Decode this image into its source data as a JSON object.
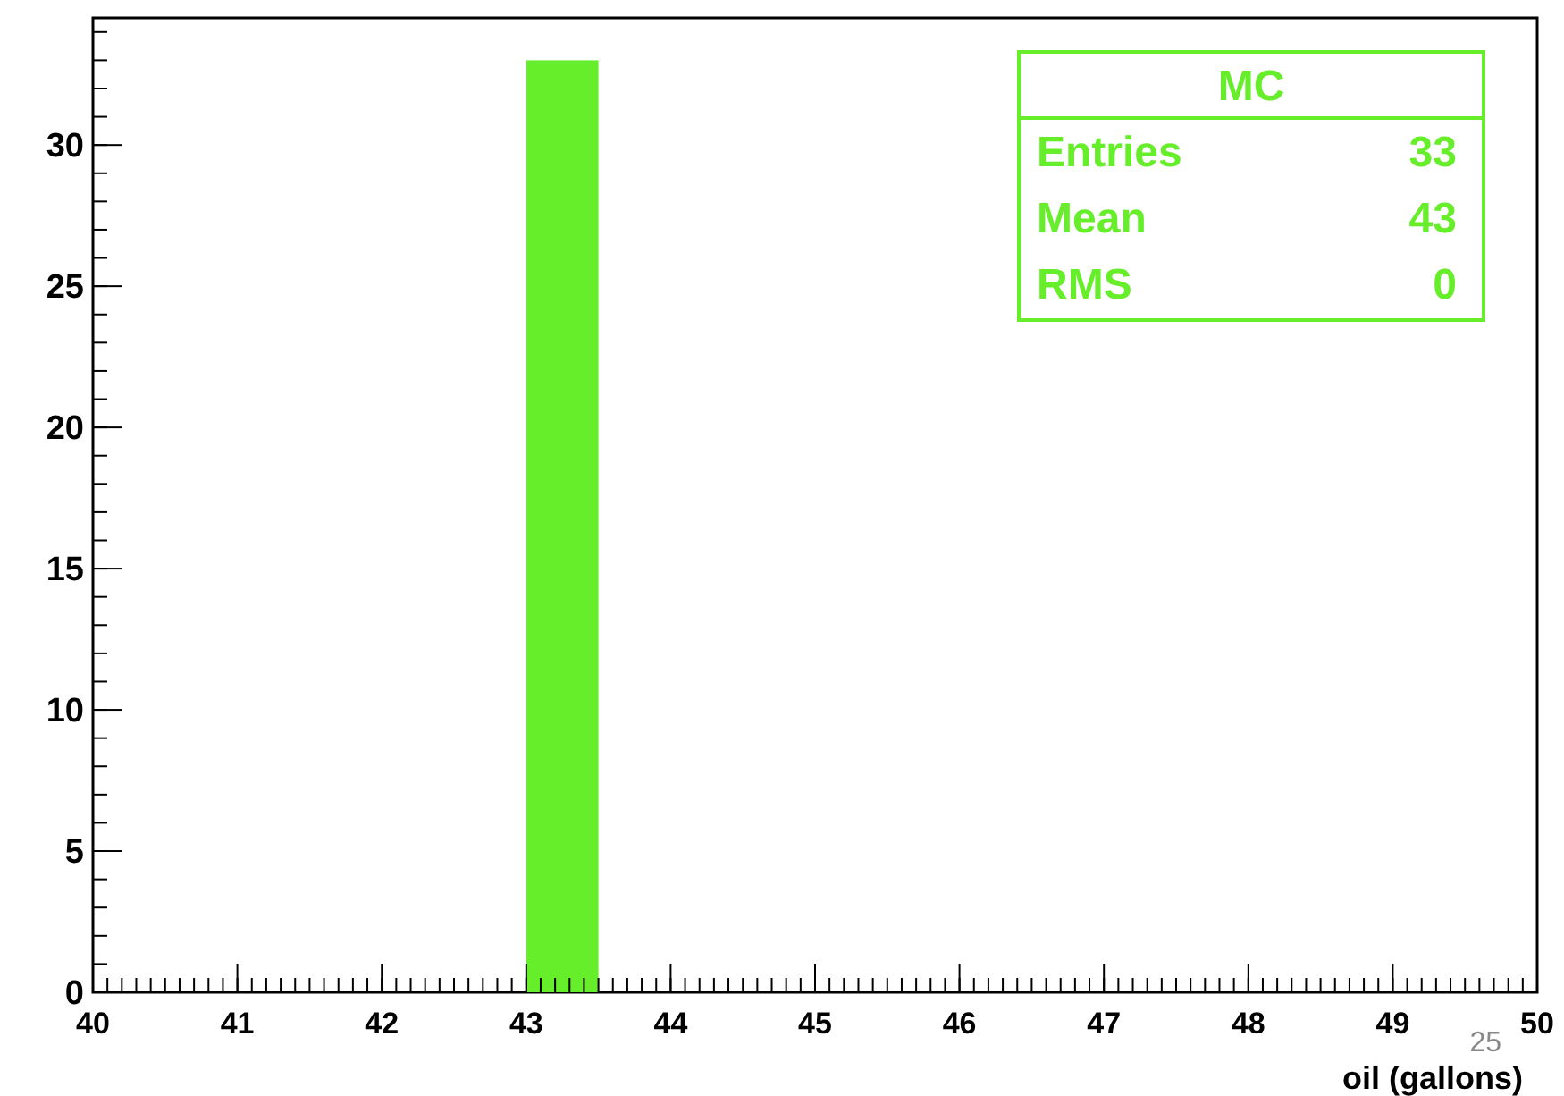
{
  "chart_data": {
    "type": "histogram",
    "bins": [
      43,
      43.5
    ],
    "values": [
      33
    ],
    "color": "#66ee2a",
    "xlim": [
      40,
      50
    ],
    "xticks": [
      40,
      41,
      42,
      43,
      44,
      45,
      46,
      47,
      48,
      49,
      50
    ],
    "ylim": [
      0,
      34.5
    ],
    "yticks": [
      0,
      5,
      10,
      15,
      20,
      25,
      30
    ],
    "xlabel": "oil (gallons)",
    "annotations": [
      "MC",
      "Entries 33",
      "Mean 43",
      "RMS 0",
      "25"
    ]
  }
}
